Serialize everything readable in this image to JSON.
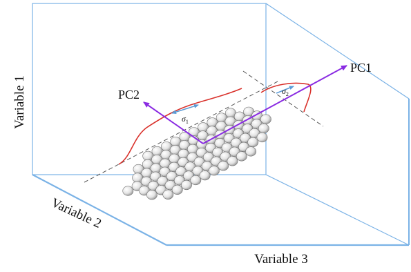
{
  "axes": {
    "vertical": "Variable 1",
    "depth": "Variable 2",
    "horizontal": "Variable 3"
  },
  "components": {
    "first": "PC1",
    "second": "PC2"
  },
  "spreads": {
    "along_pc2": "σ",
    "along_pc2_sub": "1",
    "along_pc1": "σ",
    "along_pc1_sub": "2"
  },
  "colors": {
    "box_edge": "#7ab2e6",
    "pc_arrow": "#8a2be2",
    "distribution_curve": "#d9312b",
    "spread_arrow": "#5b9bd5",
    "dashed_axis": "#555555"
  }
}
